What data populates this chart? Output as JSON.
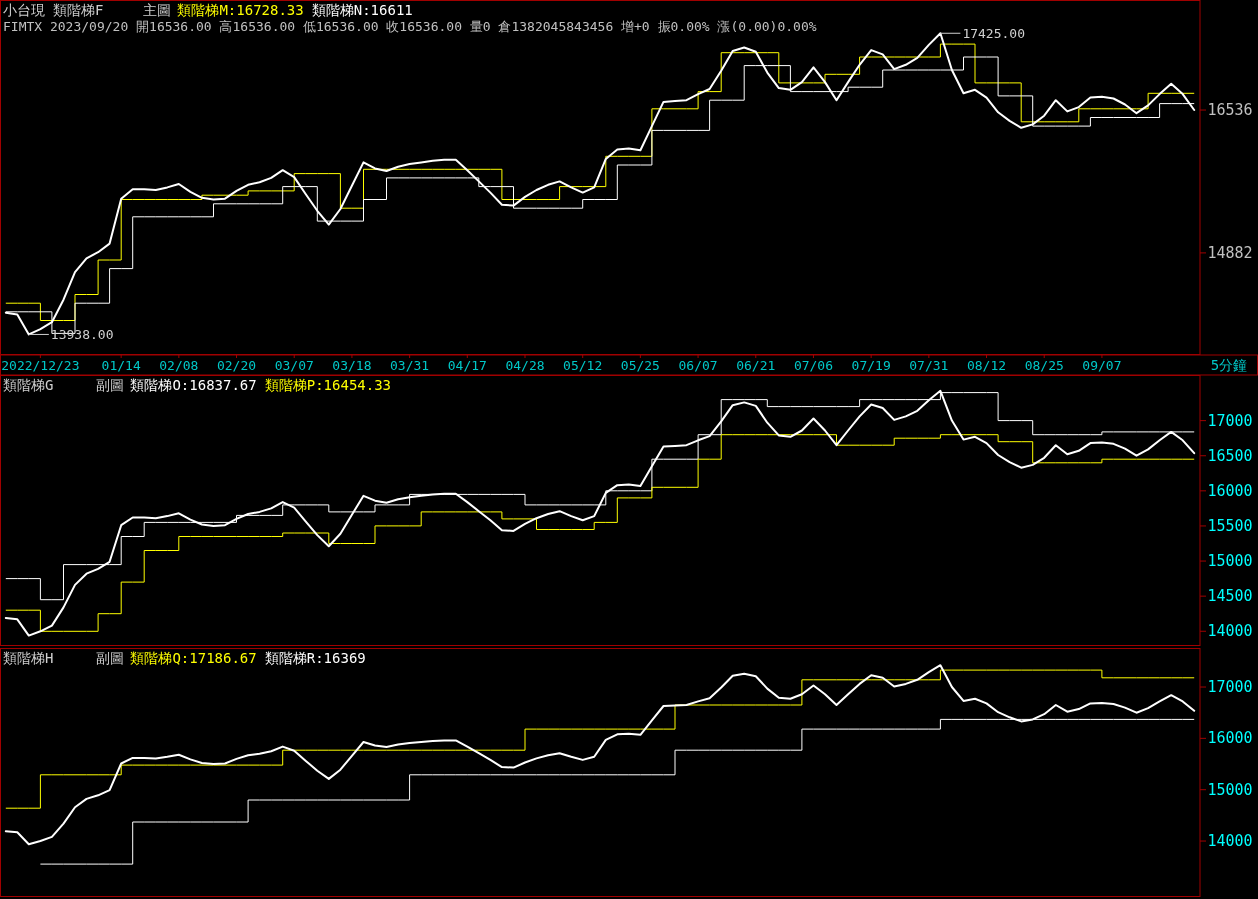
{
  "chart_data": [
    {
      "type": "line",
      "title": "小台現",
      "subtitle": "類階梯F",
      "annotations": [
        "主圖",
        "FIMTX 2023/09/20 開16536.00 高16536.00 低16536.00 收16536.00 量0 倉1382045843456 增+0 振0.00% 漲(0.00)0.00%",
        "5分鐘",
        "17425.00",
        "13938.00"
      ],
      "ylim": [
        13700,
        17810
      ],
      "yticks": [
        14882,
        16536
      ],
      "categories": [
        null,
        null,
        null,
        "2022/12/23",
        null,
        null,
        null,
        null,
        null,
        null,
        "01/14",
        null,
        null,
        null,
        null,
        "02/08",
        null,
        null,
        null,
        null,
        "02/20",
        null,
        null,
        null,
        null,
        "03/07",
        null,
        null,
        null,
        null,
        "03/18",
        null,
        null,
        null,
        null,
        "03/31",
        null,
        null,
        null,
        null,
        "04/17",
        null,
        null,
        null,
        null,
        "04/28",
        null,
        null,
        null,
        null,
        "05/12",
        null,
        null,
        null,
        null,
        "05/25",
        null,
        null,
        null,
        null,
        "06/07",
        null,
        null,
        null,
        null,
        "06/21",
        null,
        null,
        null,
        null,
        "07/06",
        null,
        null,
        null,
        null,
        "07/19",
        null,
        null,
        null,
        null,
        "07/31",
        null,
        null,
        null,
        null,
        "08/12",
        null,
        null,
        null,
        null,
        "08/25",
        null,
        null,
        null,
        null,
        "09/07",
        null,
        null,
        null,
        null,
        null,
        null,
        null,
        null
      ],
      "series": [
        {
          "type": "step",
          "name": "類階梯M:16728.33",
          "color": "#ffff00",
          "values": [
            14300,
            14300,
            14300,
            14100,
            14100,
            14100,
            14400,
            14400,
            14800,
            14800,
            15500,
            15500,
            15500,
            15500,
            15500,
            15500,
            15500,
            15550,
            15550,
            15550,
            15550,
            15600,
            15600,
            15600,
            15600,
            15800,
            15800,
            15800,
            15800,
            15400,
            15400,
            15850,
            15850,
            15850,
            15850,
            15850,
            15850,
            15850,
            15850,
            15850,
            15850,
            15850,
            15850,
            15500,
            15500,
            15500,
            15500,
            15500,
            15650,
            15650,
            15650,
            15650,
            16000,
            16000,
            16000,
            16000,
            16550,
            16550,
            16550,
            16550,
            16750,
            16750,
            17200,
            17200,
            17200,
            17200,
            17200,
            16850,
            16850,
            16850,
            16850,
            16950,
            16950,
            16950,
            17150,
            17150,
            17150,
            17150,
            17150,
            17150,
            17150,
            17300,
            17300,
            17300,
            16850,
            16850,
            16850,
            16850,
            16400,
            16400,
            16400,
            16400,
            16400,
            16550,
            16550,
            16550,
            16550,
            16550,
            16550,
            16730,
            16730,
            16730,
            16730,
            16730
          ]
        },
        {
          "type": "step",
          "name": "類階梯N:16611",
          "color": "#ffffff",
          "values": [
            14200,
            14200,
            14200,
            14200,
            13950,
            13950,
            14300,
            14300,
            14300,
            14700,
            14700,
            15300,
            15300,
            15300,
            15300,
            15300,
            15300,
            15300,
            15450,
            15450,
            15450,
            15450,
            15450,
            15450,
            15650,
            15650,
            15650,
            15250,
            15250,
            15250,
            15250,
            15500,
            15500,
            15750,
            15750,
            15750,
            15750,
            15750,
            15750,
            15750,
            15750,
            15650,
            15650,
            15650,
            15400,
            15400,
            15400,
            15400,
            15400,
            15400,
            15500,
            15500,
            15500,
            15900,
            15900,
            15900,
            16300,
            16300,
            16300,
            16300,
            16300,
            16650,
            16650,
            16650,
            17050,
            17050,
            17050,
            17050,
            16750,
            16750,
            16750,
            16750,
            16750,
            16800,
            16800,
            16800,
            17000,
            17000,
            17000,
            17000,
            17000,
            17000,
            17000,
            17150,
            17150,
            17150,
            16700,
            16700,
            16700,
            16350,
            16350,
            16350,
            16350,
            16350,
            16450,
            16450,
            16450,
            16450,
            16450,
            16450,
            16610,
            16610,
            16610,
            16610
          ]
        },
        {
          "type": "line",
          "color": "#ffffff",
          "values": [
            14190,
            14170,
            13938,
            14000,
            14080,
            14340,
            14660,
            14820,
            14890,
            14990,
            15510,
            15620,
            15620,
            15610,
            15640,
            15680,
            15590,
            15520,
            15500,
            15510,
            15600,
            15670,
            15700,
            15750,
            15840,
            15760,
            15560,
            15370,
            15210,
            15390,
            15660,
            15930,
            15860,
            15830,
            15880,
            15910,
            15930,
            15950,
            15960,
            15960,
            15840,
            15710,
            15580,
            15440,
            15430,
            15530,
            15610,
            15670,
            15710,
            15640,
            15580,
            15640,
            15970,
            16080,
            16090,
            16070,
            16350,
            16630,
            16640,
            16650,
            16720,
            16780,
            16990,
            17220,
            17260,
            17210,
            16970,
            16790,
            16770,
            16860,
            17030,
            16860,
            16650,
            16860,
            17060,
            17230,
            17180,
            17010,
            17060,
            17140,
            17290,
            17425,
            17000,
            16730,
            16770,
            16680,
            16510,
            16410,
            16330,
            16370,
            16470,
            16650,
            16520,
            16570,
            16680,
            16690,
            16670,
            16600,
            16500,
            16590,
            16720,
            16840,
            16720,
            16536
          ]
        }
      ]
    },
    {
      "type": "line",
      "title": "類階梯G",
      "annotations": [
        "副圖"
      ],
      "tick_labels": "y",
      "ylim": [
        13790,
        17650
      ],
      "yticks": [
        14000,
        14500,
        15000,
        15500,
        16000,
        16500,
        17000
      ],
      "categories": [
        null,
        null,
        null,
        null,
        null,
        null,
        null,
        null,
        null,
        null,
        null,
        null,
        null,
        null,
        null,
        null,
        null,
        null,
        null,
        null,
        null,
        null,
        null,
        null,
        null,
        null,
        null,
        null,
        null,
        null,
        null,
        null,
        null,
        null,
        null,
        null,
        null,
        null,
        null,
        null,
        null,
        null,
        null,
        null,
        null,
        null,
        null,
        null,
        null,
        null,
        null,
        null,
        null,
        null,
        null,
        null,
        null,
        null,
        null,
        null,
        null,
        null,
        null,
        null,
        null,
        null,
        null,
        null,
        null,
        null,
        null,
        null,
        null,
        null,
        null,
        null,
        null,
        null,
        null,
        null,
        null,
        null,
        null,
        null,
        null,
        null,
        null,
        null,
        null,
        null,
        null,
        null,
        null,
        null,
        null,
        null,
        null,
        null,
        null,
        null,
        null,
        null,
        null,
        null
      ],
      "series": [
        {
          "type": "step",
          "name": "類階梯O:16837.67",
          "color": "#ffffff",
          "values": [
            14750,
            14750,
            14750,
            14450,
            14450,
            14950,
            14950,
            14950,
            14950,
            14950,
            15350,
            15350,
            15550,
            15550,
            15550,
            15550,
            15550,
            15550,
            15550,
            15550,
            15650,
            15650,
            15650,
            15650,
            15800,
            15800,
            15800,
            15800,
            15700,
            15700,
            15700,
            15700,
            15800,
            15800,
            15800,
            15950,
            15950,
            15950,
            15950,
            15950,
            15950,
            15950,
            15950,
            15950,
            15950,
            15800,
            15800,
            15800,
            15800,
            15800,
            15800,
            15800,
            16000,
            16000,
            16000,
            16000,
            16450,
            16450,
            16450,
            16450,
            16800,
            16800,
            17300,
            17300,
            17300,
            17300,
            17200,
            17200,
            17200,
            17200,
            17200,
            17200,
            17200,
            17200,
            17300,
            17300,
            17300,
            17300,
            17300,
            17300,
            17300,
            17400,
            17400,
            17400,
            17400,
            17400,
            17000,
            17000,
            17000,
            16800,
            16800,
            16800,
            16800,
            16800,
            16800,
            16840,
            16840,
            16840,
            16840,
            16840,
            16840,
            16840,
            16840,
            16840
          ]
        },
        {
          "type": "step",
          "name": "類階梯P:16454.33",
          "color": "#ffff00",
          "values": [
            14300,
            14300,
            14300,
            14000,
            14000,
            14000,
            14000,
            14000,
            14250,
            14250,
            14700,
            14700,
            15150,
            15150,
            15150,
            15350,
            15350,
            15350,
            15350,
            15350,
            15350,
            15350,
            15350,
            15350,
            15400,
            15400,
            15400,
            15400,
            15250,
            15250,
            15250,
            15250,
            15500,
            15500,
            15500,
            15500,
            15700,
            15700,
            15700,
            15700,
            15700,
            15700,
            15700,
            15600,
            15600,
            15600,
            15450,
            15450,
            15450,
            15450,
            15450,
            15550,
            15550,
            15900,
            15900,
            15900,
            16050,
            16050,
            16050,
            16050,
            16450,
            16450,
            16800,
            16800,
            16800,
            16800,
            16800,
            16800,
            16800,
            16800,
            16800,
            16800,
            16650,
            16650,
            16650,
            16650,
            16650,
            16750,
            16750,
            16750,
            16750,
            16800,
            16800,
            16800,
            16800,
            16800,
            16700,
            16700,
            16700,
            16400,
            16400,
            16400,
            16400,
            16400,
            16400,
            16450,
            16450,
            16450,
            16450,
            16450,
            16450,
            16450,
            16450,
            16450
          ]
        },
        {
          "type": "line",
          "color": "#ffffff",
          "values": [
            14190,
            14170,
            13938,
            14000,
            14080,
            14340,
            14660,
            14820,
            14890,
            14990,
            15510,
            15620,
            15620,
            15610,
            15640,
            15680,
            15590,
            15520,
            15500,
            15510,
            15600,
            15670,
            15700,
            15750,
            15840,
            15760,
            15560,
            15370,
            15210,
            15390,
            15660,
            15930,
            15860,
            15830,
            15880,
            15910,
            15930,
            15950,
            15960,
            15960,
            15840,
            15710,
            15580,
            15440,
            15430,
            15530,
            15610,
            15670,
            15710,
            15640,
            15580,
            15640,
            15970,
            16080,
            16090,
            16070,
            16350,
            16630,
            16640,
            16650,
            16720,
            16780,
            16990,
            17220,
            17260,
            17210,
            16970,
            16790,
            16770,
            16860,
            17030,
            16860,
            16650,
            16860,
            17060,
            17230,
            17180,
            17010,
            17060,
            17140,
            17290,
            17425,
            17000,
            16730,
            16770,
            16680,
            16510,
            16410,
            16330,
            16370,
            16470,
            16650,
            16520,
            16570,
            16680,
            16690,
            16670,
            16600,
            16500,
            16590,
            16720,
            16840,
            16720,
            16536
          ]
        }
      ]
    },
    {
      "type": "line",
      "title": "類階梯H",
      "annotations": [
        "副圖"
      ],
      "tick_labels": "y",
      "ylim": [
        12910,
        17760
      ],
      "yticks": [
        14000,
        15000,
        16000,
        17000
      ],
      "categories": [
        null,
        null,
        null,
        null,
        null,
        null,
        null,
        null,
        null,
        null,
        null,
        null,
        null,
        null,
        null,
        null,
        null,
        null,
        null,
        null,
        null,
        null,
        null,
        null,
        null,
        null,
        null,
        null,
        null,
        null,
        null,
        null,
        null,
        null,
        null,
        null,
        null,
        null,
        null,
        null,
        null,
        null,
        null,
        null,
        null,
        null,
        null,
        null,
        null,
        null,
        null,
        null,
        null,
        null,
        null,
        null,
        null,
        null,
        null,
        null,
        null,
        null,
        null,
        null,
        null,
        null,
        null,
        null,
        null,
        null,
        null,
        null,
        null,
        null,
        null,
        null,
        null,
        null,
        null,
        null,
        null,
        null,
        null,
        null,
        null,
        null,
        null,
        null,
        null,
        null,
        null,
        null,
        null,
        null,
        null,
        null,
        null,
        null,
        null,
        null,
        null,
        null,
        null,
        null
      ],
      "series": [
        {
          "type": "step",
          "name": "類階梯Q:17186.67",
          "color": "#ffff00",
          "values": [
            14640,
            14640,
            14640,
            15290,
            15290,
            15290,
            15290,
            15290,
            15290,
            15290,
            15480,
            15480,
            15480,
            15480,
            15480,
            15480,
            15480,
            15480,
            15480,
            15480,
            15480,
            15480,
            15480,
            15480,
            15770,
            15770,
            15770,
            15770,
            15770,
            15770,
            15770,
            15770,
            15770,
            15770,
            15770,
            15770,
            15770,
            15770,
            15770,
            15770,
            15770,
            15770,
            15770,
            15770,
            15770,
            16180,
            16180,
            16180,
            16180,
            16180,
            16180,
            16180,
            16180,
            16180,
            16180,
            16180,
            16180,
            16180,
            16650,
            16650,
            16650,
            16650,
            16650,
            16650,
            16650,
            16650,
            16650,
            16650,
            16650,
            17140,
            17140,
            17140,
            17140,
            17140,
            17140,
            17140,
            17140,
            17140,
            17140,
            17140,
            17140,
            17330,
            17330,
            17330,
            17330,
            17330,
            17330,
            17330,
            17330,
            17330,
            17330,
            17330,
            17330,
            17330,
            17330,
            17180,
            17180,
            17180,
            17180,
            17180,
            17180,
            17180,
            17180,
            17180
          ]
        },
        {
          "type": "step",
          "name": "類階梯R:16369",
          "color": "#ffffff",
          "values": [
            null,
            null,
            null,
            13550,
            13550,
            13550,
            13550,
            13550,
            13550,
            13550,
            13550,
            14370,
            14370,
            14370,
            14370,
            14370,
            14370,
            14370,
            14370,
            14370,
            14370,
            14800,
            14800,
            14800,
            14800,
            14800,
            14800,
            14800,
            14800,
            14800,
            14800,
            14800,
            14800,
            14800,
            14800,
            15290,
            15290,
            15290,
            15290,
            15290,
            15290,
            15290,
            15290,
            15290,
            15290,
            15290,
            15290,
            15290,
            15290,
            15290,
            15290,
            15290,
            15290,
            15290,
            15290,
            15290,
            15290,
            15290,
            15770,
            15770,
            15770,
            15770,
            15770,
            15770,
            15770,
            15770,
            15770,
            15770,
            15770,
            16180,
            16180,
            16180,
            16180,
            16180,
            16180,
            16180,
            16180,
            16180,
            16180,
            16180,
            16180,
            16370,
            16370,
            16370,
            16370,
            16370,
            16370,
            16370,
            16370,
            16370,
            16370,
            16370,
            16370,
            16370,
            16370,
            16370,
            16370,
            16370,
            16370,
            16370,
            16370,
            16370,
            16370,
            16370
          ]
        },
        {
          "type": "line",
          "color": "#ffffff",
          "values": [
            14190,
            14170,
            13938,
            14000,
            14080,
            14340,
            14660,
            14820,
            14890,
            14990,
            15510,
            15620,
            15620,
            15610,
            15640,
            15680,
            15590,
            15520,
            15500,
            15510,
            15600,
            15670,
            15700,
            15750,
            15840,
            15760,
            15560,
            15370,
            15210,
            15390,
            15660,
            15930,
            15860,
            15830,
            15880,
            15910,
            15930,
            15950,
            15960,
            15960,
            15840,
            15710,
            15580,
            15440,
            15430,
            15530,
            15610,
            15670,
            15710,
            15640,
            15580,
            15640,
            15970,
            16080,
            16090,
            16070,
            16350,
            16630,
            16640,
            16650,
            16720,
            16780,
            16990,
            17220,
            17260,
            17210,
            16970,
            16790,
            16770,
            16860,
            17030,
            16860,
            16650,
            16860,
            17060,
            17230,
            17180,
            17010,
            17060,
            17140,
            17290,
            17425,
            17000,
            16730,
            16770,
            16680,
            16510,
            16410,
            16330,
            16370,
            16470,
            16650,
            16520,
            16570,
            16680,
            16690,
            16670,
            16600,
            16500,
            16590,
            16720,
            16840,
            16720,
            16536
          ]
        }
      ]
    }
  ]
}
